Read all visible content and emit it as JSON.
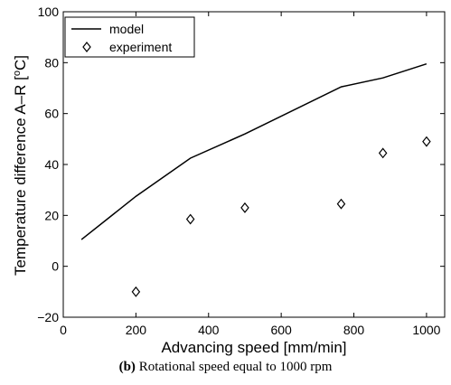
{
  "chart_data": {
    "type": "line",
    "xlabel": "Advancing speed [mm/min]",
    "ylabel": "Temperature difference A–R [",
    "ylabel_unit_sup": "o",
    "ylabel_unit_tail": "C]",
    "xlim": [
      0,
      1050
    ],
    "ylim": [
      -20,
      100
    ],
    "xticks": [
      0,
      200,
      400,
      600,
      800,
      1000
    ],
    "yticks": [
      -20,
      0,
      20,
      40,
      60,
      80,
      100
    ],
    "grid": false,
    "legend_position": "top-left",
    "series": [
      {
        "name": "model",
        "style": "line",
        "color": "#000000",
        "x": [
          50,
          200,
          350,
          500,
          765,
          880,
          1000
        ],
        "y": [
          10.5,
          27.5,
          42.5,
          52,
          70.5,
          74,
          79.5
        ]
      },
      {
        "name": "experiment",
        "style": "diamond-marker",
        "color": "#000000",
        "x": [
          200,
          350,
          500,
          765,
          880,
          1000
        ],
        "y": [
          -10,
          18.5,
          23,
          24.5,
          44.5,
          49
        ]
      }
    ]
  },
  "caption": {
    "tag": "(b)",
    "text": "Rotational speed equal to 1000 rpm"
  }
}
